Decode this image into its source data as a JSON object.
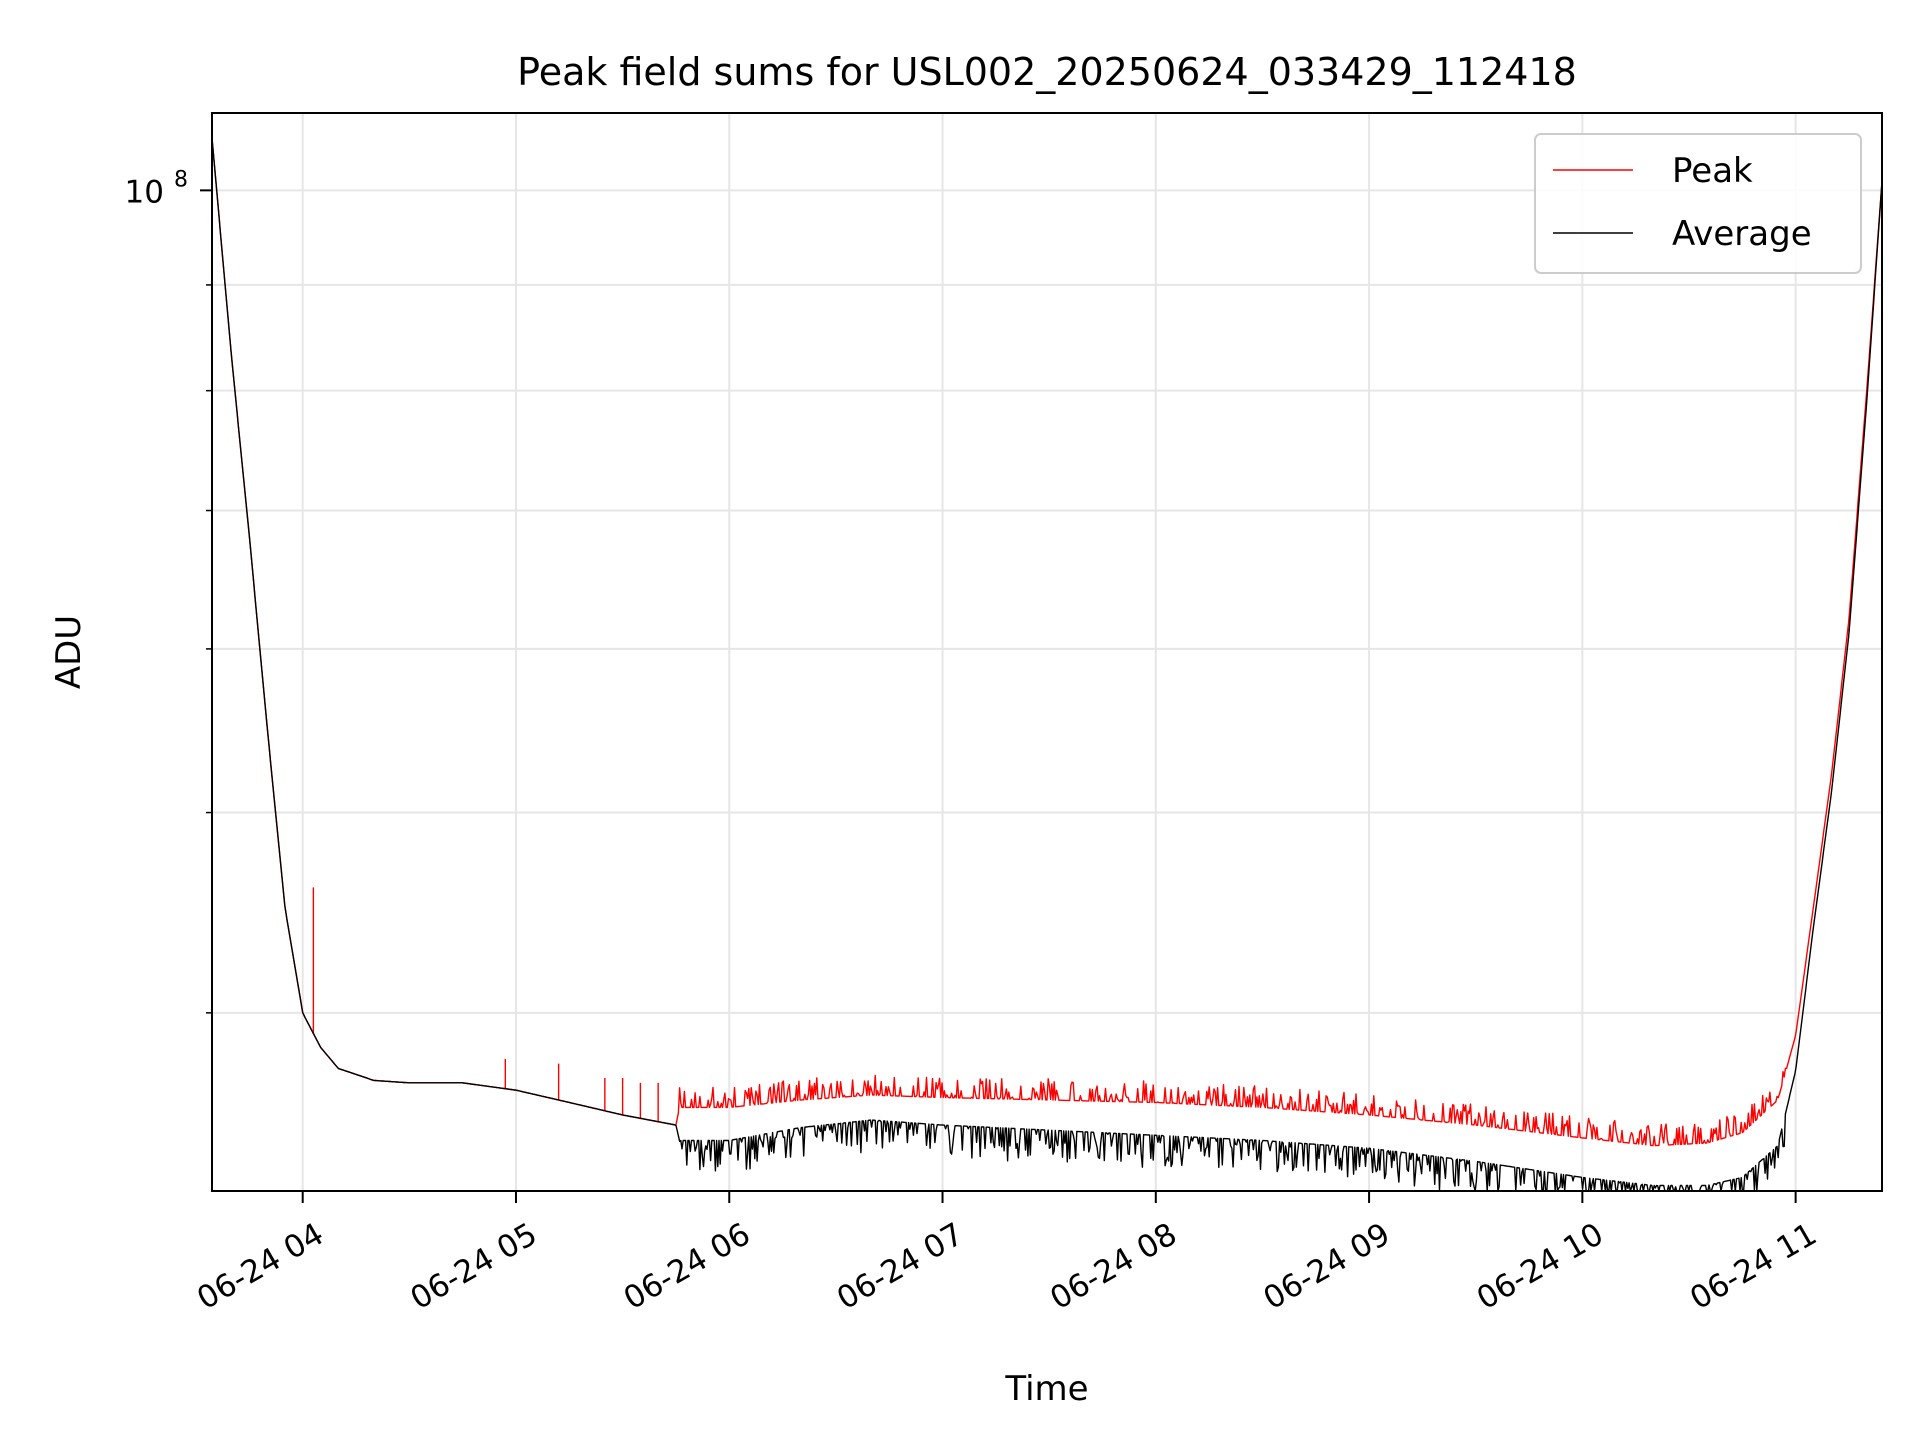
{
  "chart_data": {
    "type": "line",
    "title": "Peak field sums for USL002_20250624_033429_112418",
    "xlabel": "Time",
    "ylabel": "ADU",
    "x_range": [
      "2025-06-24T03:34:29",
      "2025-06-24T11:24:18"
    ],
    "y_scale": "log",
    "ylim": [
      32800000,
      109000000
    ],
    "x_ticks": [
      {
        "t": "2025-06-24T04:00",
        "label": "06-24 04"
      },
      {
        "t": "2025-06-24T05:00",
        "label": "06-24 05"
      },
      {
        "t": "2025-06-24T06:00",
        "label": "06-24 06"
      },
      {
        "t": "2025-06-24T07:00",
        "label": "06-24 07"
      },
      {
        "t": "2025-06-24T08:00",
        "label": "06-24 08"
      },
      {
        "t": "2025-06-24T09:00",
        "label": "06-24 09"
      },
      {
        "t": "2025-06-24T10:00",
        "label": "06-24 10"
      },
      {
        "t": "2025-06-24T11:00",
        "label": "06-24 11"
      }
    ],
    "y_ticks": [
      {
        "value": 100000000,
        "label_base": "10",
        "label_exp": "8"
      }
    ],
    "y_minor_ticks": [
      40000000,
      50000000,
      60000000,
      70000000,
      80000000,
      90000000
    ],
    "grid": true,
    "legend": {
      "placement": "top-right",
      "entries": [
        "Peak",
        "Average"
      ]
    },
    "series": [
      {
        "name": "Peak",
        "color": "#ff0000",
        "x": [
          "2025-06-24T03:34:29",
          "2025-06-24T03:40",
          "2025-06-24T03:45",
          "2025-06-24T03:50",
          "2025-06-24T03:55",
          "2025-06-24T04:00",
          "2025-06-24T04:05",
          "2025-06-24T04:10",
          "2025-06-24T04:20",
          "2025-06-24T04:30",
          "2025-06-24T04:45",
          "2025-06-24T05:00",
          "2025-06-24T05:15",
          "2025-06-24T05:30",
          "2025-06-24T05:45",
          "2025-06-24T05:46",
          "2025-06-24T06:00",
          "2025-06-24T06:20",
          "2025-06-24T06:40",
          "2025-06-24T07:00",
          "2025-06-24T07:30",
          "2025-06-24T08:00",
          "2025-06-24T08:30",
          "2025-06-24T09:00",
          "2025-06-24T09:30",
          "2025-06-24T10:00",
          "2025-06-24T10:20",
          "2025-06-24T10:35",
          "2025-06-24T10:45",
          "2025-06-24T10:55",
          "2025-06-24T11:00",
          "2025-06-24T11:05",
          "2025-06-24T11:10",
          "2025-06-24T11:15",
          "2025-06-24T11:20",
          "2025-06-24T11:24:18"
        ],
        "values": [
          106000000,
          83000000,
          68000000,
          55000000,
          45000000,
          40000000,
          38500000,
          37600000,
          37100000,
          37000000,
          37000000,
          36700000,
          36200000,
          35700000,
          35300000,
          36000000,
          36000000,
          36300000,
          36500000,
          36400000,
          36300000,
          36200000,
          36000000,
          35700000,
          35300000,
          34800000,
          34500000,
          34600000,
          35000000,
          36300000,
          39000000,
          45000000,
          52000000,
          62000000,
          80000000,
          101000000
        ],
        "spikes": [
          {
            "x": "2025-06-24T04:03",
            "y": 46000000
          },
          {
            "x": "2025-06-24T04:57",
            "y": 38000000
          },
          {
            "x": "2025-06-24T05:12",
            "y": 37800000
          },
          {
            "x": "2025-06-24T05:25",
            "y": 37200000
          },
          {
            "x": "2025-06-24T05:30",
            "y": 37200000
          },
          {
            "x": "2025-06-24T05:35",
            "y": 37000000
          },
          {
            "x": "2025-06-24T05:40",
            "y": 37000000
          }
        ]
      },
      {
        "name": "Average",
        "color": "#000000",
        "x": [
          "2025-06-24T03:34:29",
          "2025-06-24T03:40",
          "2025-06-24T03:45",
          "2025-06-24T03:50",
          "2025-06-24T03:55",
          "2025-06-24T04:00",
          "2025-06-24T04:05",
          "2025-06-24T04:10",
          "2025-06-24T04:20",
          "2025-06-24T04:30",
          "2025-06-24T04:45",
          "2025-06-24T05:00",
          "2025-06-24T05:15",
          "2025-06-24T05:30",
          "2025-06-24T05:45",
          "2025-06-24T05:46",
          "2025-06-24T06:00",
          "2025-06-24T06:20",
          "2025-06-24T06:40",
          "2025-06-24T07:00",
          "2025-06-24T07:30",
          "2025-06-24T08:00",
          "2025-06-24T08:30",
          "2025-06-24T09:00",
          "2025-06-24T09:30",
          "2025-06-24T10:00",
          "2025-06-24T10:20",
          "2025-06-24T10:35",
          "2025-06-24T10:45",
          "2025-06-24T10:55",
          "2025-06-24T11:00",
          "2025-06-24T11:05",
          "2025-06-24T11:10",
          "2025-06-24T11:15",
          "2025-06-24T11:20",
          "2025-06-24T11:24:18"
        ],
        "values": [
          106000000,
          83000000,
          68000000,
          55000000,
          45000000,
          40000000,
          38500000,
          37600000,
          37100000,
          37000000,
          37000000,
          36700000,
          36200000,
          35700000,
          35300000,
          34700000,
          34700000,
          35200000,
          35500000,
          35300000,
          35100000,
          34900000,
          34700000,
          34400000,
          33900000,
          33300000,
          33000000,
          33000000,
          33300000,
          34500000,
          37500000,
          44000000,
          51000000,
          61000000,
          79000000,
          101000000
        ]
      }
    ]
  }
}
